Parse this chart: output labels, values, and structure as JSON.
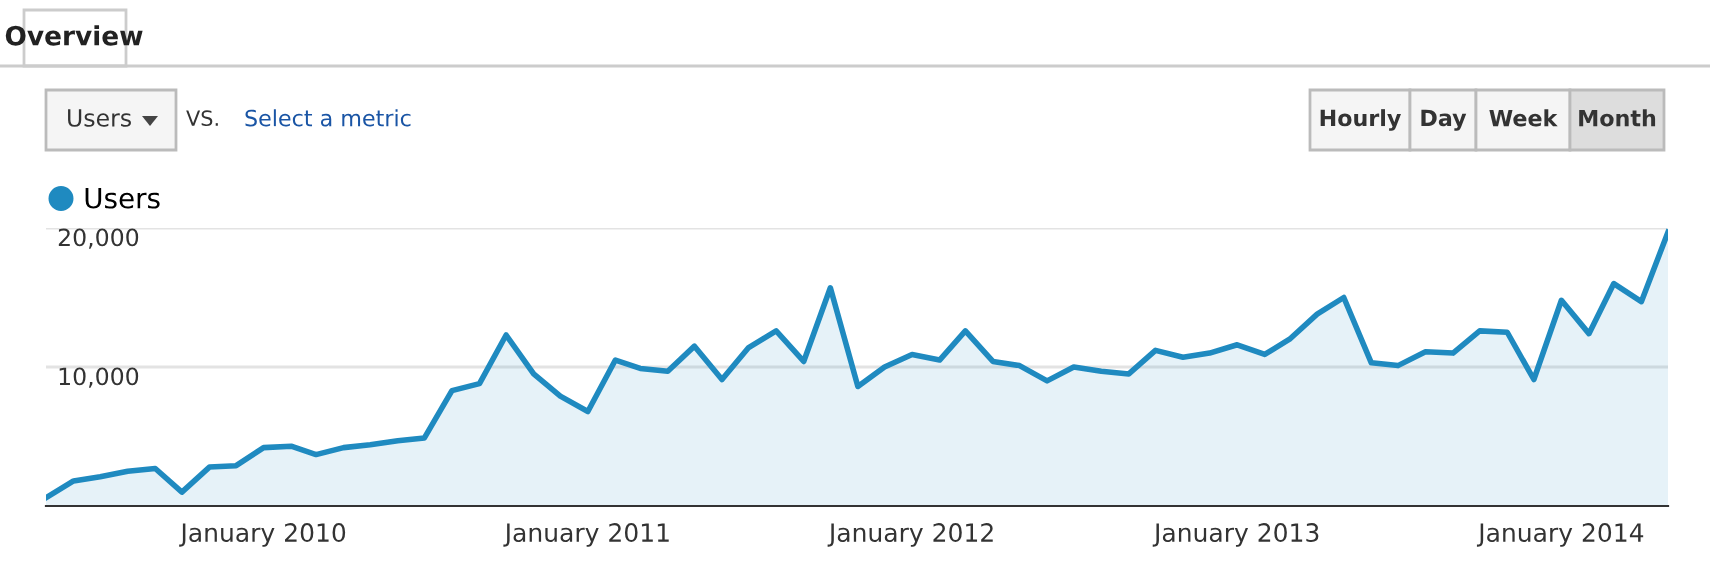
{
  "chart_data": {
    "type": "area",
    "x": [
      "2009-05",
      "2009-06",
      "2009-07",
      "2009-08",
      "2009-09",
      "2009-10",
      "2009-11",
      "2009-12",
      "2010-01",
      "2010-02",
      "2010-03",
      "2010-04",
      "2010-05",
      "2010-06",
      "2010-07",
      "2010-08",
      "2010-09",
      "2010-10",
      "2010-11",
      "2010-12",
      "2011-01",
      "2011-02",
      "2011-03",
      "2011-04",
      "2011-05",
      "2011-06",
      "2011-07",
      "2011-08",
      "2011-09",
      "2011-10",
      "2011-11",
      "2011-12",
      "2012-01",
      "2012-02",
      "2012-03",
      "2012-04",
      "2012-05",
      "2012-06",
      "2012-07",
      "2012-08",
      "2012-09",
      "2012-10",
      "2012-11",
      "2012-12",
      "2013-01",
      "2013-02",
      "2013-03",
      "2013-04",
      "2013-05",
      "2013-06",
      "2013-07",
      "2013-08",
      "2013-09",
      "2013-10",
      "2013-11",
      "2013-12",
      "2014-01",
      "2014-02",
      "2014-03",
      "2014-04",
      "2014-05"
    ],
    "series": [
      {
        "name": "Users",
        "color": "#1f8ac0",
        "values": [
          600,
          1800,
          2100,
          2500,
          2700,
          1000,
          2800,
          2900,
          4200,
          4300,
          3700,
          4200,
          4400,
          4700,
          4900,
          8300,
          8800,
          12300,
          9500,
          7900,
          6800,
          10500,
          9900,
          9700,
          11500,
          9100,
          11400,
          12600,
          10400,
          15700,
          8600,
          10000,
          10900,
          10500,
          12600,
          10400,
          10100,
          9000,
          10000,
          9700,
          9500,
          11200,
          10700,
          11000,
          11600,
          10900,
          12000,
          13800,
          15000,
          10300,
          10100,
          11100,
          11000,
          12600,
          12500,
          9100,
          14800,
          12400,
          16000,
          14700,
          19700
        ]
      }
    ],
    "xlim": [
      "2009-05",
      "2014-05"
    ],
    "xticks": [
      {
        "value": "2010-01",
        "label": "January 2010"
      },
      {
        "value": "2011-01",
        "label": "January 2011"
      },
      {
        "value": "2012-01",
        "label": "January 2012"
      },
      {
        "value": "2013-01",
        "label": "January 2013"
      },
      {
        "value": "2014-01",
        "label": "January 2014"
      }
    ],
    "ylim": [
      0,
      20000
    ],
    "yticks": [
      {
        "value": 10000,
        "label": "10,000"
      },
      {
        "value": 20000,
        "label": "20,000"
      }
    ],
    "grid": "y",
    "legend": "top left",
    "annotations": [
      "Overview",
      "Users",
      "VS.",
      "Select a metric",
      "Hourly",
      "Day",
      "Week",
      "Month"
    ]
  }
}
